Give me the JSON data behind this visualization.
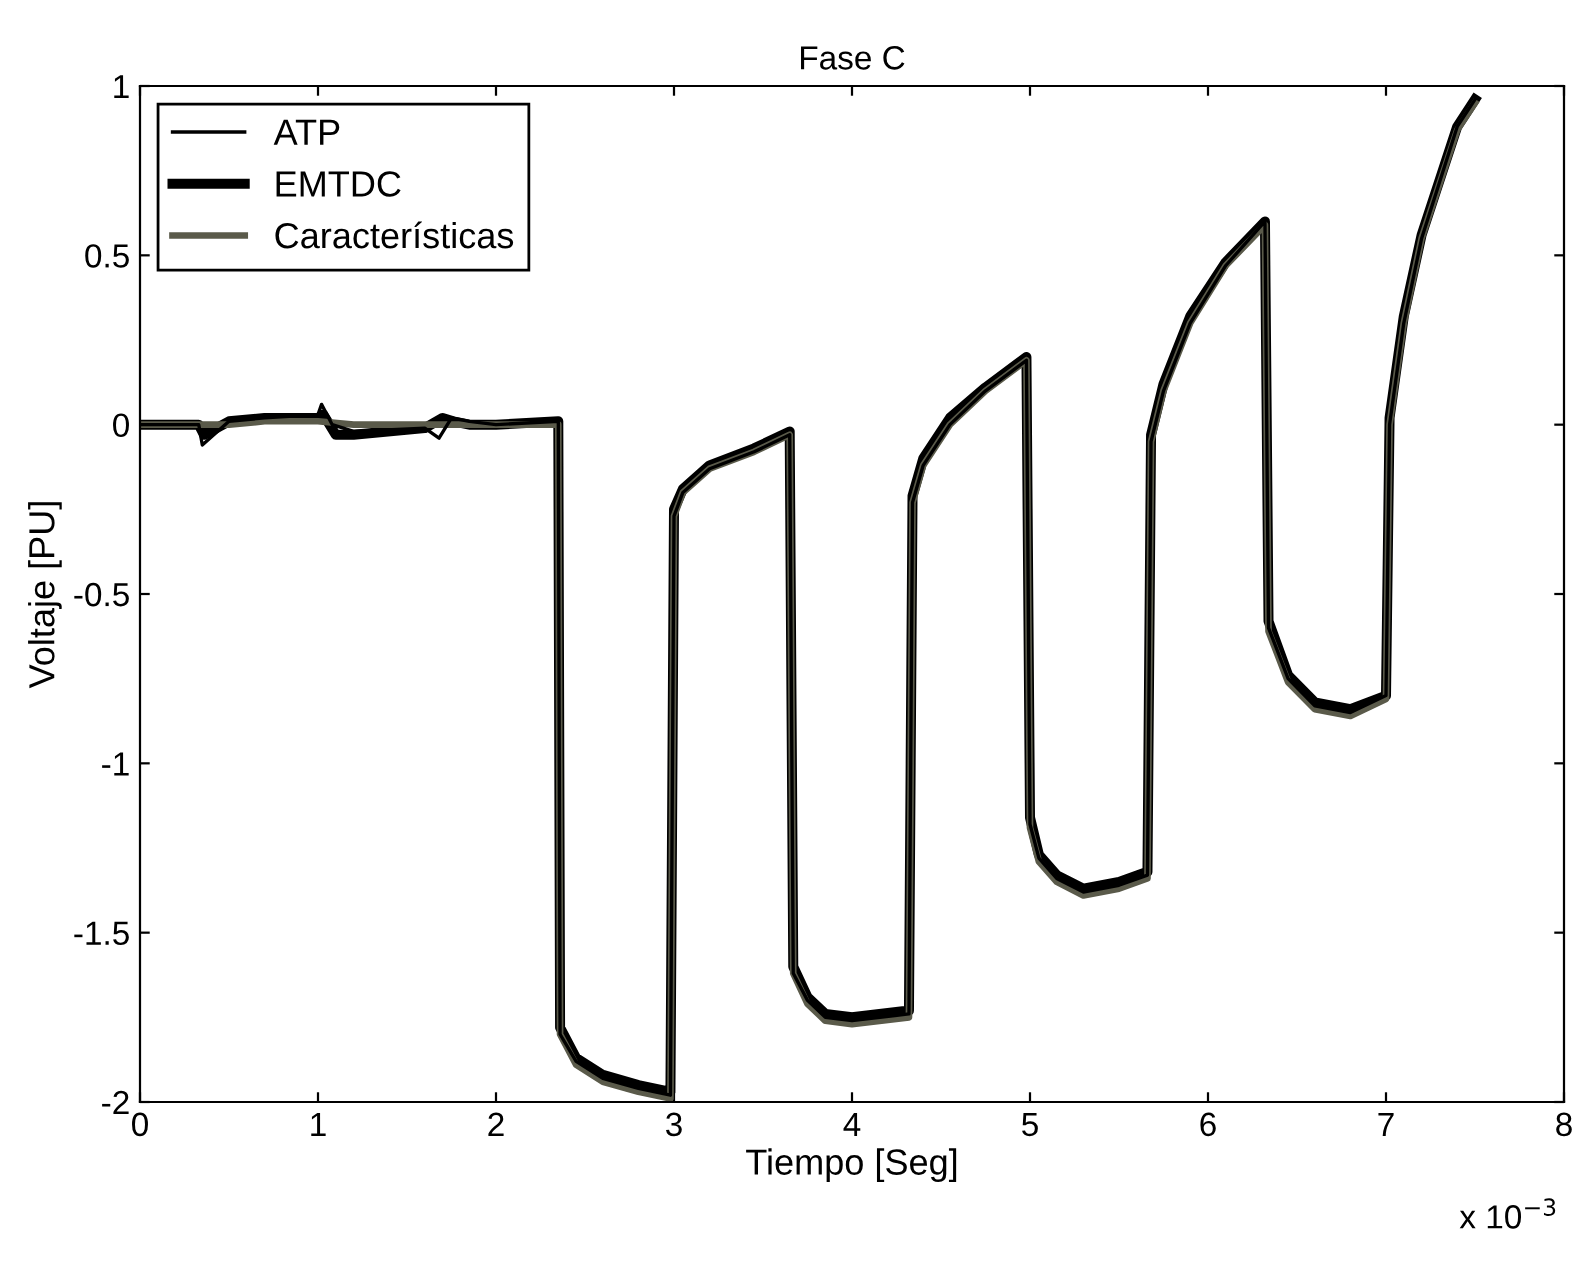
{
  "chart_data": {
    "type": "line",
    "title": "Fase C",
    "xlabel": "Tiempo [Seg]",
    "ylabel": "Voltaje [PU]",
    "annotations": [
      "x 10$^{−3}$"
    ],
    "xlim": [
      0,
      8
    ],
    "xticks": [
      0,
      1,
      2,
      3,
      4,
      5,
      6,
      7,
      8
    ],
    "ylim": [
      -2,
      1
    ],
    "yticks": [
      -2,
      -1.5,
      -1,
      -0.5,
      0,
      0.5,
      1
    ],
    "grid": false,
    "legend": "top left",
    "line_style": "solid",
    "marker": "none",
    "series": [
      {
        "name": "ATP",
        "color": "#000000",
        "x": [
          0,
          0.33,
          0.35,
          0.5,
          0.7,
          1.0,
          1.02,
          1.08,
          1.2,
          1.6,
          1.68,
          1.75,
          1.85,
          2.0,
          2.35,
          2.36,
          2.45,
          2.6,
          2.8,
          2.98,
          3.0,
          3.05,
          3.2,
          3.45,
          3.65,
          3.67,
          3.75,
          3.85,
          4.0,
          4.32,
          4.34,
          4.4,
          4.55,
          4.75,
          4.98,
          5.0,
          5.05,
          5.15,
          5.3,
          5.5,
          5.66,
          5.68,
          5.75,
          5.9,
          6.1,
          6.32,
          6.34,
          6.45,
          6.6,
          6.8,
          7.0,
          7.02,
          7.1,
          7.2,
          7.4,
          7.5
        ],
        "values": [
          0,
          0,
          -0.06,
          0.01,
          0.02,
          0.03,
          0.06,
          0.0,
          -0.02,
          -0.01,
          -0.04,
          0.02,
          0.01,
          0.0,
          0.01,
          -1.8,
          -1.88,
          -1.93,
          -1.96,
          -1.98,
          -0.27,
          -0.2,
          -0.13,
          -0.08,
          -0.03,
          -1.62,
          -1.7,
          -1.75,
          -1.76,
          -1.74,
          -0.23,
          -0.12,
          0.0,
          0.1,
          0.19,
          -1.18,
          -1.28,
          -1.34,
          -1.38,
          -1.36,
          -1.33,
          -0.05,
          0.1,
          0.3,
          0.47,
          0.6,
          -0.6,
          -0.75,
          -0.83,
          -0.85,
          -0.8,
          0.0,
          0.3,
          0.55,
          0.88,
          0.96
        ]
      },
      {
        "name": "EMTDC",
        "color": "#000000",
        "x": [
          0,
          0.33,
          0.36,
          0.5,
          0.7,
          1.0,
          1.03,
          1.1,
          1.2,
          1.6,
          1.7,
          1.76,
          1.85,
          2.0,
          2.35,
          2.36,
          2.45,
          2.6,
          2.8,
          2.98,
          3.0,
          3.05,
          3.2,
          3.45,
          3.65,
          3.67,
          3.75,
          3.85,
          4.0,
          4.32,
          4.34,
          4.4,
          4.55,
          4.75,
          4.98,
          5.0,
          5.05,
          5.15,
          5.3,
          5.5,
          5.66,
          5.68,
          5.75,
          5.9,
          6.1,
          6.32,
          6.34,
          6.45,
          6.6,
          6.8,
          7.0,
          7.02,
          7.1,
          7.2,
          7.4,
          7.5
        ],
        "values": [
          0,
          0,
          -0.03,
          0.01,
          0.02,
          0.02,
          0.03,
          -0.03,
          -0.03,
          -0.01,
          0.02,
          0.01,
          0.0,
          0.0,
          0.01,
          -1.78,
          -1.87,
          -1.92,
          -1.95,
          -1.97,
          -0.25,
          -0.19,
          -0.12,
          -0.07,
          -0.02,
          -1.6,
          -1.69,
          -1.74,
          -1.75,
          -1.73,
          -0.21,
          -0.1,
          0.02,
          0.11,
          0.2,
          -1.16,
          -1.27,
          -1.33,
          -1.37,
          -1.35,
          -1.32,
          -0.03,
          0.12,
          0.32,
          0.48,
          0.6,
          -0.58,
          -0.74,
          -0.82,
          -0.84,
          -0.8,
          0.02,
          0.32,
          0.56,
          0.88,
          0.96
        ]
      },
      {
        "name": "Características",
        "color": "#5a5a4a",
        "x": [
          0,
          0.33,
          0.5,
          0.7,
          1.0,
          1.2,
          1.6,
          2.0,
          2.35,
          2.36,
          2.45,
          2.6,
          2.8,
          2.98,
          3.0,
          3.05,
          3.2,
          3.45,
          3.65,
          3.67,
          3.75,
          3.85,
          4.0,
          4.32,
          4.34,
          4.4,
          4.55,
          4.75,
          4.98,
          5.0,
          5.05,
          5.15,
          5.3,
          5.5,
          5.66,
          5.68,
          5.75,
          5.9,
          6.1,
          6.32,
          6.34,
          6.45,
          6.6,
          6.8,
          7.0,
          7.02,
          7.1,
          7.2,
          7.4,
          7.5
        ],
        "values": [
          0,
          0,
          0.0,
          0.01,
          0.01,
          0.0,
          0.0,
          0.0,
          0.0,
          -1.8,
          -1.89,
          -1.94,
          -1.97,
          -1.99,
          -0.27,
          -0.2,
          -0.13,
          -0.08,
          -0.03,
          -1.62,
          -1.71,
          -1.76,
          -1.77,
          -1.75,
          -0.23,
          -0.12,
          0.0,
          0.1,
          0.19,
          -1.19,
          -1.29,
          -1.35,
          -1.39,
          -1.37,
          -1.34,
          -0.05,
          0.1,
          0.3,
          0.47,
          0.59,
          -0.61,
          -0.76,
          -0.84,
          -0.86,
          -0.81,
          0.0,
          0.3,
          0.55,
          0.87,
          0.95
        ]
      }
    ]
  }
}
